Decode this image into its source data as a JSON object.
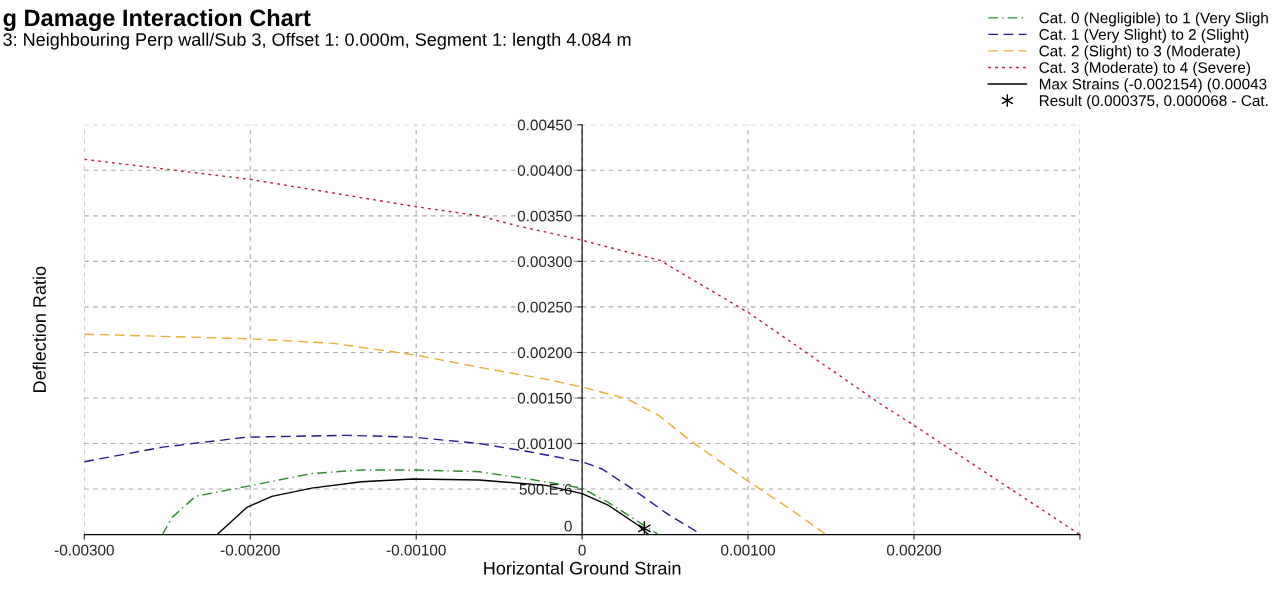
{
  "chart_data": {
    "type": "line",
    "title": "g Damage Interaction Chart",
    "subtitle": "3: Neighbouring Perp wall/Sub 3, Offset 1: 0.000m, Segment 1: length 4.084 m",
    "xlabel": "Horizontal Ground Strain",
    "ylabel": "Deflection Ratio",
    "xlim": [
      -0.003,
      0.003
    ],
    "xticks": [
      {
        "value": -0.003,
        "label": "-0.00300"
      },
      {
        "value": -0.002,
        "label": "-0.00200"
      },
      {
        "value": -0.001,
        "label": "-0.00100"
      },
      0,
      {
        "value": 0.001,
        "label": "0.00100"
      },
      {
        "value": 0.002,
        "label": "0.00200"
      },
      {
        "value": 0.003,
        "label": null
      }
    ],
    "ylim": [
      0,
      0.0045
    ],
    "yticks": [
      0,
      {
        "value": 0.0005,
        "label": "500.E-6"
      },
      {
        "value": 0.001,
        "label": "0.00100"
      },
      {
        "value": 0.0015,
        "label": "0.00150"
      },
      {
        "value": 0.002,
        "label": "0.00200"
      },
      {
        "value": 0.0025,
        "label": "0.00250"
      },
      {
        "value": 0.003,
        "label": "0.00300"
      },
      {
        "value": 0.0035,
        "label": "0.00350"
      },
      {
        "value": 0.004,
        "label": "0.00400"
      },
      {
        "value": 0.0045,
        "label": "0.00450"
      }
    ],
    "grid": true,
    "legend": "top right",
    "series": [
      {
        "name": "Cat. 0 (Negligible) to 1 (Very Sligh",
        "color": "#2e8b2e",
        "line_style": "dashdot",
        "x": [
          -0.00253,
          -0.00247,
          -0.00233,
          -0.00202,
          -0.00163,
          -0.00133,
          -0.00102,
          -0.00062,
          -0.00032,
          0.0,
          0.00016,
          0.00034,
          0.00046
        ],
        "values": [
          0,
          0.00019,
          0.00042,
          0.00053,
          0.00067,
          0.00071,
          0.00071,
          0.00069,
          0.00061,
          0.00051,
          0.00035,
          0.00014,
          0
        ]
      },
      {
        "name": "Cat. 1 (Very Slight) to 2 (Slight)",
        "color": "#1c1c8c",
        "line_style": "dashed",
        "x": [
          -0.003,
          -0.00253,
          -0.00202,
          -0.00142,
          -0.00102,
          -0.00062,
          -0.00032,
          0.0,
          0.00012,
          0.00028,
          0.00052,
          0.00072
        ],
        "values": [
          0.0008,
          0.00096,
          0.00107,
          0.00109,
          0.00107,
          0.001,
          0.00091,
          0.0008,
          0.00072,
          0.00053,
          0.00022,
          0
        ]
      },
      {
        "name": "Cat. 2 (Slight) to 3 (Moderate)",
        "color": "#e6b030",
        "line_style": "dashed",
        "x": [
          -0.003,
          -0.002,
          -0.0015,
          -0.001,
          -0.0006,
          -0.0002,
          0.0,
          0.00027,
          0.00046,
          0.00066,
          0.00099,
          0.00127,
          0.00147
        ],
        "values": [
          0.0022,
          0.00215,
          0.0021,
          0.00197,
          0.00183,
          0.0017,
          0.00162,
          0.00149,
          0.00131,
          0.00102,
          0.0006,
          0.00026,
          0
        ]
      },
      {
        "name": "Cat. 3 (Moderate) to 4 (Severe)",
        "color": "#b02030",
        "line_style": "dotted",
        "x": [
          -0.003,
          -0.002,
          -0.001,
          -0.00062,
          -0.00039,
          -4e-05,
          0.00047,
          0.001,
          0.00135,
          0.00181,
          0.002,
          0.0025,
          0.003
        ],
        "values": [
          0.00412,
          0.0039,
          0.0036,
          0.0035,
          0.00339,
          0.00325,
          0.00301,
          0.00244,
          0.002,
          0.00142,
          0.0012,
          0.0006,
          0
        ]
      },
      {
        "name": "Max Strains (-0.002154) (0.00043",
        "color": "#000000",
        "line_style": "solid",
        "x": [
          -0.0022,
          -0.00214,
          -0.00202,
          -0.00187,
          -0.00163,
          -0.00133,
          -0.00102,
          -0.00062,
          -0.00022,
          0.0,
          0.00016,
          0.00034,
          0.0004
        ],
        "values": [
          0,
          0.0001,
          0.0003,
          0.00042,
          0.00051,
          0.00058,
          0.00061,
          0.0006,
          0.00054,
          0.00045,
          0.00032,
          0.0001,
          0
        ]
      },
      {
        "name": "Result (0.000375, 0.000068 - Cat.",
        "color": "#000000",
        "type": "scatter",
        "marker": "cross",
        "x": [
          0.000375
        ],
        "values": [
          6.8e-05
        ]
      }
    ]
  }
}
